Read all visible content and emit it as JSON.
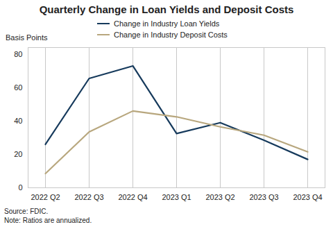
{
  "chart_data": {
    "type": "line",
    "title": "Quarterly Change in Loan Yields and Deposit Costs",
    "y_label": "Basis Points",
    "categories": [
      "2022 Q2",
      "2022 Q3",
      "2022 Q4",
      "2023 Q1",
      "2023 Q2",
      "2023 Q3",
      "2023 Q4"
    ],
    "series": [
      {
        "name": "Change in Industry Loan Yields",
        "color": "#163a5c",
        "values": [
          26,
          65.5,
          73,
          32.5,
          39,
          28.5,
          17
        ]
      },
      {
        "name": "Change in Industry Deposit Costs",
        "color": "#b8a77e",
        "values": [
          8.5,
          33.5,
          46,
          42.5,
          36.5,
          31.5,
          21.5
        ]
      }
    ],
    "ylim": [
      0,
      84
    ],
    "yticks": [
      0,
      20,
      40,
      60,
      80
    ],
    "grid": true,
    "legend": "top",
    "notes": [
      "Source: FDIC.",
      "Note: Ratios are annualized."
    ]
  }
}
